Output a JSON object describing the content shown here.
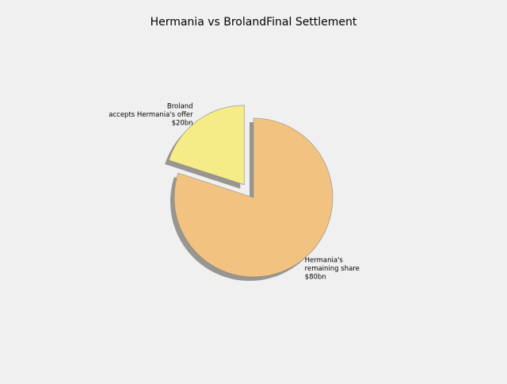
{
  "chart_data": {
    "type": "pie",
    "title": "Hermania vs BrolandFinal Settlement",
    "slices": [
      {
        "label_lines": [
          "Hermania's",
          "remaining share",
          "$80bn"
        ],
        "value": 80,
        "color": "#f2c380",
        "exploded": false
      },
      {
        "label_lines": [
          "Broland",
          "accepts Hermania's offer",
          "$20bn"
        ],
        "value": 20,
        "color": "#f5ec87",
        "exploded": true
      }
    ],
    "start_angle_deg": 90,
    "direction": "clockwise",
    "shadow": true,
    "legend": "none"
  }
}
